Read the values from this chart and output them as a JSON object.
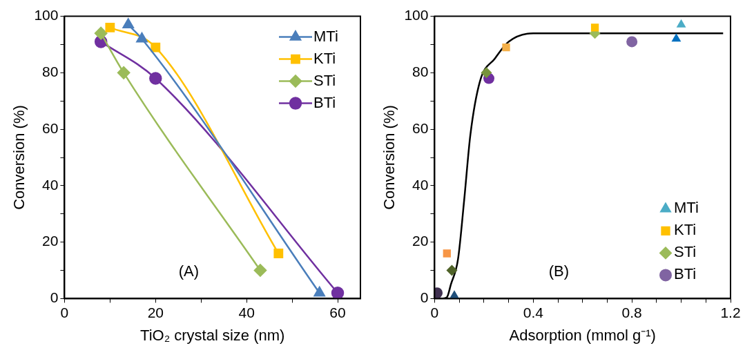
{
  "chart_data": [
    {
      "type": "line",
      "xlabel": "TiO₂ crystal size (nm)",
      "ylabel": "Conversion (%)",
      "annotations": [
        "(A)"
      ],
      "xlim": [
        0,
        65
      ],
      "xticks": [
        0,
        {
          "value": 10,
          "label": null
        },
        20,
        {
          "value": 30,
          "label": null
        },
        40,
        {
          "value": 50,
          "label": null
        },
        60
      ],
      "ylim": [
        0,
        100
      ],
      "yticks": [
        0,
        {
          "value": 10,
          "label": null
        },
        20,
        {
          "value": 30,
          "label": null
        },
        40,
        {
          "value": 50,
          "label": null
        },
        60,
        {
          "value": 70,
          "label": null
        },
        80,
        {
          "value": 90,
          "label": null
        },
        100
      ],
      "grid": false,
      "legend": "top right",
      "series": [
        {
          "name": "MTi",
          "color": "#4a7ebb",
          "marker": "triangle",
          "x": [
            14,
            17,
            56
          ],
          "values": [
            97,
            92,
            2
          ]
        },
        {
          "name": "KTi",
          "color": "#ffc000",
          "marker": "square",
          "x": [
            10,
            20,
            47
          ],
          "values": [
            96,
            89,
            16
          ]
        },
        {
          "name": "STi",
          "color": "#9bbb59",
          "marker": "diamond",
          "x": [
            8,
            13,
            43
          ],
          "values": [
            94,
            80,
            10
          ]
        },
        {
          "name": "BTi",
          "color": "#7030a0",
          "marker": "circle",
          "x": [
            8,
            20,
            60
          ],
          "values": [
            91,
            78,
            2
          ]
        }
      ]
    },
    {
      "type": "scatter",
      "xlabel": "Adsorption (mmol g⁻¹)",
      "ylabel": "Conversion (%)",
      "annotations": [
        "(B)"
      ],
      "xlim": [
        0,
        1.2
      ],
      "xticks": [
        0,
        {
          "value": 0.1,
          "label": null
        },
        {
          "value": 0.2,
          "label": null
        },
        {
          "value": 0.3,
          "label": null
        },
        0.4,
        {
          "value": 0.5,
          "label": null
        },
        {
          "value": 0.6,
          "label": null
        },
        {
          "value": 0.7,
          "label": null
        },
        0.8,
        {
          "value": 0.9,
          "label": null
        },
        {
          "value": 1,
          "label": null
        },
        {
          "value": 1.1,
          "label": null
        },
        1.2
      ],
      "ylim": [
        0,
        100
      ],
      "yticks": [
        0,
        {
          "value": 10,
          "label": null
        },
        20,
        {
          "value": 30,
          "label": null
        },
        40,
        {
          "value": 50,
          "label": null
        },
        60,
        {
          "value": 70,
          "label": null
        },
        80,
        {
          "value": 90,
          "label": null
        },
        100
      ],
      "grid": false,
      "legend": "bottom right",
      "series": [
        {
          "name": "MTi",
          "color": "#4bacc6",
          "marker": "triangle",
          "x": [
            0.08,
            0.98,
            1.0
          ],
          "values": [
            1,
            92,
            97
          ],
          "colors": [
            "#1f4e79",
            "#0070c0",
            "#4bacc6"
          ]
        },
        {
          "name": "KTi",
          "color": "#ffc000",
          "marker": "square",
          "x": [
            0.05,
            0.29,
            0.65
          ],
          "values": [
            16,
            89,
            96
          ],
          "colors": [
            "#f79646",
            "#f4b04a",
            "#ffc000"
          ]
        },
        {
          "name": "STi",
          "color": "#77933c",
          "marker": "diamond",
          "x": [
            0.07,
            0.21,
            0.65
          ],
          "values": [
            10,
            80,
            94
          ],
          "colors": [
            "#4f6228",
            "#77933c",
            "#9bbb59"
          ]
        },
        {
          "name": "BTi",
          "color": "#7030a0",
          "marker": "circle",
          "x": [
            0.01,
            0.22,
            0.8
          ],
          "values": [
            2,
            78,
            91
          ],
          "colors": [
            "#403151",
            "#7030a0",
            "#8064a2"
          ]
        },
        {
          "type": "line",
          "color": "#000000",
          "marker": "none",
          "x": [
            0.03,
            0.05,
            0.066,
            0.095,
            0.12,
            0.145,
            0.184,
            0.244,
            0.3,
            0.4,
            0.5,
            1.17
          ],
          "values": [
            0,
            0.5,
            5,
            14,
            35,
            58,
            77,
            85,
            91,
            94,
            94,
            94
          ]
        }
      ]
    }
  ]
}
